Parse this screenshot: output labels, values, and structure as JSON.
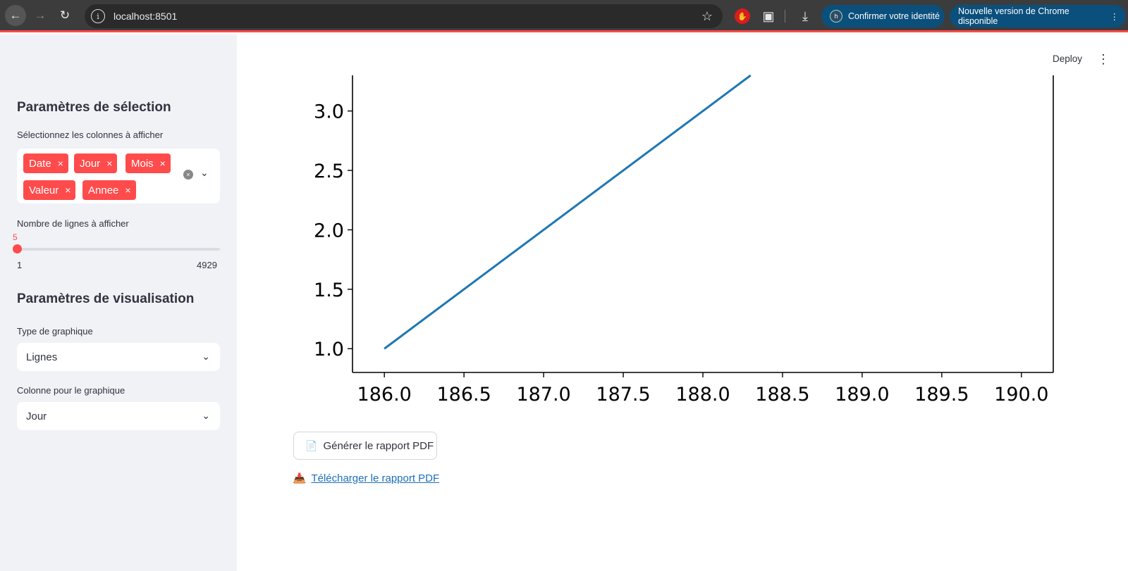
{
  "browser": {
    "url": "localhost:8501",
    "identity_label": "Confirmer votre identité",
    "identity_avatar": "h",
    "update_label": "Nouvelle version de Chrome disponible"
  },
  "icons": {
    "back": "arrow-left-icon",
    "forward": "arrow-right-icon",
    "reload": "reload-icon",
    "info": "site-info-icon",
    "star": "star-icon",
    "shield": "hand-stop-icon",
    "extensions": "puzzle-icon",
    "download": "download-icon",
    "menu": "kebab-icon",
    "pdf": "document-icon",
    "inbox": "inbox-tray-icon"
  },
  "sidebar": {
    "selection_title": "Paramètres de sélection",
    "columns_label": "Sélectionnez les colonnes à afficher",
    "tags": [
      "Date",
      "Jour",
      "Mois",
      "Valeur",
      "Annee"
    ],
    "rows_label": "Nombre de lignes à afficher",
    "slider": {
      "value": "5",
      "min": "1",
      "max": "4929"
    },
    "viz_title": "Paramètres de visualisation",
    "chart_type_label": "Type de graphique",
    "chart_type_value": "Lignes",
    "column_label": "Colonne pour le graphique",
    "column_value": "Jour"
  },
  "header": {
    "deploy": "Deploy"
  },
  "main": {
    "pdf_button": "Générer le rapport PDF",
    "download_link": "Télécharger le rapport PDF"
  },
  "colors": {
    "accent": "#ff4b4b",
    "line": "#1f77b4",
    "link": "#1c70b8"
  },
  "chart_data": {
    "type": "line",
    "x": [
      186.0,
      188.3
    ],
    "y": [
      1.0,
      3.3
    ],
    "xlim": [
      185.8,
      190.2
    ],
    "ylim": [
      0.8,
      3.3
    ],
    "xticks": [
      "186.0",
      "186.5",
      "187.0",
      "187.5",
      "188.0",
      "188.5",
      "189.0",
      "189.5",
      "190.0"
    ],
    "yticks": [
      "1.0",
      "1.5",
      "2.0",
      "2.5",
      "3.0"
    ],
    "grid": false
  }
}
